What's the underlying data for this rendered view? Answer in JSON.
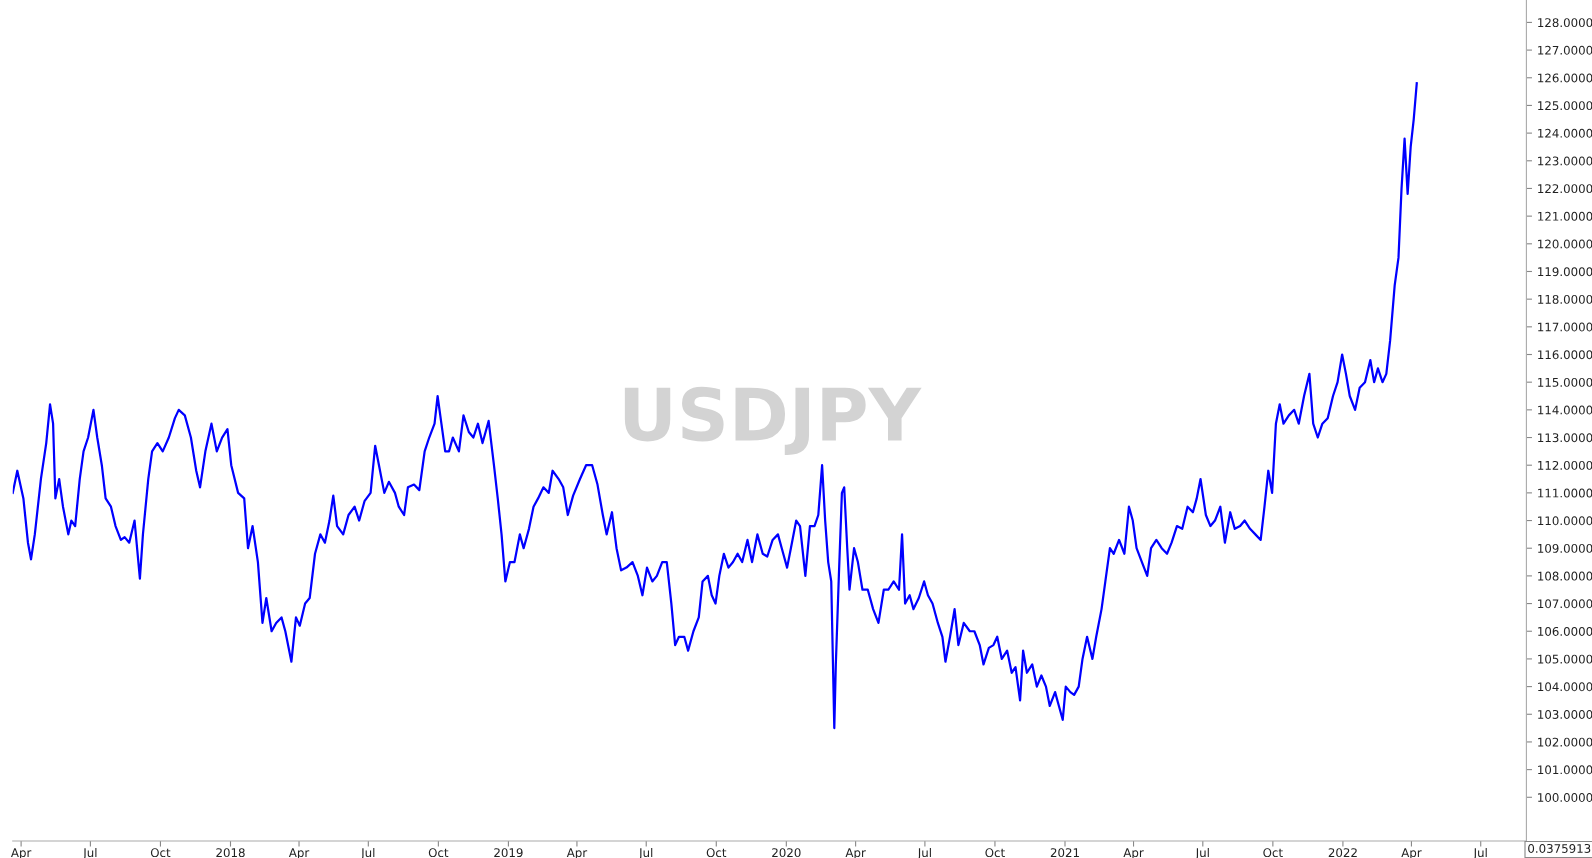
{
  "chart_data": {
    "type": "line",
    "title": "USDJPY",
    "annotations": [
      "0.0375913"
    ],
    "xlim": [
      "2017-03-21",
      "2022-08-30"
    ],
    "xticks": [
      {
        "value": "2017-04-01",
        "label": "Apr"
      },
      {
        "value": "2017-07-01",
        "label": "Jul"
      },
      {
        "value": "2017-10-01",
        "label": "Oct"
      },
      {
        "value": "2018-01-01",
        "label": "2018"
      },
      {
        "value": "2018-04-01",
        "label": "Apr"
      },
      {
        "value": "2018-07-01",
        "label": "Jul"
      },
      {
        "value": "2018-10-01",
        "label": "Oct"
      },
      {
        "value": "2019-01-01",
        "label": "2019"
      },
      {
        "value": "2019-04-01",
        "label": "Apr"
      },
      {
        "value": "2019-07-01",
        "label": "Jul"
      },
      {
        "value": "2019-10-01",
        "label": "Oct"
      },
      {
        "value": "2020-01-01",
        "label": "2020"
      },
      {
        "value": "2020-04-01",
        "label": "Apr"
      },
      {
        "value": "2020-07-01",
        "label": "Jul"
      },
      {
        "value": "2020-10-01",
        "label": "Oct"
      },
      {
        "value": "2021-01-01",
        "label": "2021"
      },
      {
        "value": "2021-04-01",
        "label": "Apr"
      },
      {
        "value": "2021-07-01",
        "label": "Jul"
      },
      {
        "value": "2021-10-01",
        "label": "Oct"
      },
      {
        "value": "2022-01-01",
        "label": "2022"
      },
      {
        "value": "2022-04-01",
        "label": "Apr"
      },
      {
        "value": "2022-07-01",
        "label": "Jul"
      }
    ],
    "ylim": [
      98.42,
      128.81
    ],
    "yticks": [
      {
        "value": 100,
        "label": "100.0000"
      },
      {
        "value": 101,
        "label": "101.0000"
      },
      {
        "value": 102,
        "label": "102.0000"
      },
      {
        "value": 103,
        "label": "103.0000"
      },
      {
        "value": 104,
        "label": "104.0000"
      },
      {
        "value": 105,
        "label": "105.0000"
      },
      {
        "value": 106,
        "label": "106.0000"
      },
      {
        "value": 107,
        "label": "107.0000"
      },
      {
        "value": 108,
        "label": "108.0000"
      },
      {
        "value": 109,
        "label": "109.0000"
      },
      {
        "value": 110,
        "label": "110.0000"
      },
      {
        "value": 111,
        "label": "111.0000"
      },
      {
        "value": 112,
        "label": "112.0000"
      },
      {
        "value": 113,
        "label": "113.0000"
      },
      {
        "value": 114,
        "label": "114.0000"
      },
      {
        "value": 115,
        "label": "115.0000"
      },
      {
        "value": 116,
        "label": "116.0000"
      },
      {
        "value": 117,
        "label": "117.0000"
      },
      {
        "value": 118,
        "label": "118.0000"
      },
      {
        "value": 119,
        "label": "119.0000"
      },
      {
        "value": 120,
        "label": "120.0000"
      },
      {
        "value": 121,
        "label": "121.0000"
      },
      {
        "value": 122,
        "label": "122.0000"
      },
      {
        "value": 123,
        "label": "123.0000"
      },
      {
        "value": 124,
        "label": "124.0000"
      },
      {
        "value": 125,
        "label": "125.0000"
      },
      {
        "value": 126,
        "label": "126.0000"
      },
      {
        "value": 127,
        "label": "127.0000"
      },
      {
        "value": 128,
        "label": "128.0000"
      }
    ],
    "grid": false,
    "legend": false,
    "marker": "none",
    "line_style": "solid",
    "series": [
      {
        "color": "#0000ff",
        "x": [
          "2017-03-21",
          "2017-03-27",
          "2017-04-04",
          "2017-04-10",
          "2017-04-14",
          "2017-04-19",
          "2017-04-27",
          "2017-05-04",
          "2017-05-09",
          "2017-05-13",
          "2017-05-16",
          "2017-05-21",
          "2017-05-26",
          "2017-06-02",
          "2017-06-06",
          "2017-06-11",
          "2017-06-17",
          "2017-06-22",
          "2017-06-28",
          "2017-07-05",
          "2017-07-10",
          "2017-07-16",
          "2017-07-21",
          "2017-07-28",
          "2017-08-03",
          "2017-08-10",
          "2017-08-15",
          "2017-08-21",
          "2017-08-28",
          "2017-09-04",
          "2017-09-08",
          "2017-09-15",
          "2017-09-20",
          "2017-09-27",
          "2017-10-04",
          "2017-10-12",
          "2017-10-20",
          "2017-10-25",
          "2017-11-02",
          "2017-11-10",
          "2017-11-17",
          "2017-11-22",
          "2017-11-29",
          "2017-12-07",
          "2017-12-14",
          "2017-12-21",
          "2017-12-28",
          "2018-01-02",
          "2018-01-11",
          "2018-01-19",
          "2018-01-24",
          "2018-01-30",
          "2018-02-06",
          "2018-02-12",
          "2018-02-17",
          "2018-02-24",
          "2018-03-02",
          "2018-03-09",
          "2018-03-14",
          "2018-03-22",
          "2018-03-28",
          "2018-04-02",
          "2018-04-09",
          "2018-04-15",
          "2018-04-22",
          "2018-04-29",
          "2018-05-05",
          "2018-05-11",
          "2018-05-16",
          "2018-05-21",
          "2018-05-29",
          "2018-06-05",
          "2018-06-13",
          "2018-06-19",
          "2018-06-26",
          "2018-07-04",
          "2018-07-10",
          "2018-07-15",
          "2018-07-22",
          "2018-07-28",
          "2018-08-05",
          "2018-08-10",
          "2018-08-17",
          "2018-08-22",
          "2018-08-30",
          "2018-09-06",
          "2018-09-13",
          "2018-09-19",
          "2018-09-26",
          "2018-09-30",
          "2018-10-05",
          "2018-10-10",
          "2018-10-15",
          "2018-10-20",
          "2018-10-28",
          "2018-11-03",
          "2018-11-10",
          "2018-11-16",
          "2018-11-22",
          "2018-11-28",
          "2018-12-06",
          "2018-12-13",
          "2018-12-18",
          "2018-12-23",
          "2018-12-28",
          "2019-01-03",
          "2019-01-09",
          "2019-01-16",
          "2019-01-21",
          "2019-01-28",
          "2019-02-03",
          "2019-02-09",
          "2019-02-16",
          "2019-02-23",
          "2019-02-28",
          "2019-03-08",
          "2019-03-14",
          "2019-03-20",
          "2019-03-27",
          "2019-04-05",
          "2019-04-13",
          "2019-04-21",
          "2019-04-28",
          "2019-05-05",
          "2019-05-10",
          "2019-05-17",
          "2019-05-23",
          "2019-05-29",
          "2019-06-05",
          "2019-06-13",
          "2019-06-20",
          "2019-06-26",
          "2019-07-02",
          "2019-07-09",
          "2019-07-15",
          "2019-07-22",
          "2019-07-28",
          "2019-08-03",
          "2019-08-08",
          "2019-08-13",
          "2019-08-20",
          "2019-08-25",
          "2019-09-01",
          "2019-09-08",
          "2019-09-13",
          "2019-09-20",
          "2019-09-25",
          "2019-09-30",
          "2019-10-05",
          "2019-10-11",
          "2019-10-17",
          "2019-10-23",
          "2019-10-29",
          "2019-11-04",
          "2019-11-11",
          "2019-11-17",
          "2019-11-24",
          "2019-12-01",
          "2019-12-07",
          "2019-12-14",
          "2019-12-21",
          "2019-12-26",
          "2020-01-02",
          "2020-01-07",
          "2020-01-14",
          "2020-01-19",
          "2020-01-26",
          "2020-02-01",
          "2020-02-07",
          "2020-02-12",
          "2020-02-17",
          "2020-02-21",
          "2020-02-25",
          "2020-02-29",
          "2020-03-04",
          "2020-03-06",
          "2020-03-10",
          "2020-03-14",
          "2020-03-17",
          "2020-03-21",
          "2020-03-24",
          "2020-03-30",
          "2020-04-04",
          "2020-04-10",
          "2020-04-17",
          "2020-04-24",
          "2020-05-01",
          "2020-05-08",
          "2020-05-14",
          "2020-05-21",
          "2020-05-28",
          "2020-06-01",
          "2020-06-05",
          "2020-06-11",
          "2020-06-16",
          "2020-06-23",
          "2020-06-30",
          "2020-07-05",
          "2020-07-11",
          "2020-07-18",
          "2020-07-24",
          "2020-07-28",
          "2020-08-03",
          "2020-08-09",
          "2020-08-14",
          "2020-08-21",
          "2020-08-29",
          "2020-09-04",
          "2020-09-11",
          "2020-09-16",
          "2020-09-23",
          "2020-09-29",
          "2020-10-04",
          "2020-10-10",
          "2020-10-17",
          "2020-10-23",
          "2020-10-28",
          "2020-11-03",
          "2020-11-07",
          "2020-11-12",
          "2020-11-19",
          "2020-11-25",
          "2020-12-01",
          "2020-12-07",
          "2020-12-12",
          "2020-12-19",
          "2020-12-24",
          "2020-12-29",
          "2021-01-02",
          "2021-01-08",
          "2021-01-13",
          "2021-01-19",
          "2021-01-24",
          "2021-01-30",
          "2021-02-06",
          "2021-02-11",
          "2021-02-18",
          "2021-02-23",
          "2021-03-01",
          "2021-03-06",
          "2021-03-13",
          "2021-03-20",
          "2021-03-26",
          "2021-03-31",
          "2021-04-05",
          "2021-04-12",
          "2021-04-19",
          "2021-04-24",
          "2021-05-01",
          "2021-05-08",
          "2021-05-15",
          "2021-05-21",
          "2021-05-28",
          "2021-06-04",
          "2021-06-11",
          "2021-06-18",
          "2021-06-23",
          "2021-06-28",
          "2021-07-05",
          "2021-07-11",
          "2021-07-17",
          "2021-07-24",
          "2021-07-30",
          "2021-08-06",
          "2021-08-12",
          "2021-08-19",
          "2021-08-25",
          "2021-09-01",
          "2021-09-08",
          "2021-09-15",
          "2021-09-20",
          "2021-09-25",
          "2021-09-30",
          "2021-10-05",
          "2021-10-10",
          "2021-10-15",
          "2021-10-22",
          "2021-10-29",
          "2021-11-04",
          "2021-11-11",
          "2021-11-18",
          "2021-11-23",
          "2021-11-29",
          "2021-12-05",
          "2021-12-12",
          "2021-12-19",
          "2021-12-25",
          "2021-12-31",
          "2022-01-05",
          "2022-01-10",
          "2022-01-17",
          "2022-01-23",
          "2022-01-30",
          "2022-02-06",
          "2022-02-11",
          "2022-02-16",
          "2022-02-22",
          "2022-02-27",
          "2022-03-04",
          "2022-03-10",
          "2022-03-15",
          "2022-03-19",
          "2022-03-23",
          "2022-03-27",
          "2022-03-31",
          "2022-04-04",
          "2022-04-08"
        ],
        "values": [
          111.0,
          111.8,
          110.8,
          109.2,
          108.6,
          109.5,
          111.5,
          112.8,
          114.2,
          113.5,
          110.8,
          111.5,
          110.5,
          109.5,
          110.0,
          109.8,
          111.5,
          112.5,
          113.0,
          114.0,
          113.0,
          112.0,
          110.8,
          110.5,
          109.8,
          109.3,
          109.4,
          109.2,
          110.0,
          107.9,
          109.5,
          111.5,
          112.5,
          112.8,
          112.5,
          113.0,
          113.7,
          114.0,
          113.8,
          113.0,
          111.8,
          111.2,
          112.5,
          113.5,
          112.5,
          113.0,
          113.3,
          112.0,
          111.0,
          110.8,
          109.0,
          109.8,
          108.5,
          106.3,
          107.2,
          106.0,
          106.3,
          106.5,
          106.0,
          104.9,
          106.5,
          106.2,
          107.0,
          107.2,
          108.8,
          109.5,
          109.2,
          110.0,
          110.9,
          109.8,
          109.5,
          110.2,
          110.5,
          110.0,
          110.7,
          111.0,
          112.7,
          112.0,
          111.0,
          111.4,
          111.0,
          110.5,
          110.2,
          111.2,
          111.3,
          111.1,
          112.5,
          113.0,
          113.5,
          114.5,
          113.5,
          112.5,
          112.5,
          113.0,
          112.5,
          113.8,
          113.2,
          113.0,
          113.5,
          112.8,
          113.6,
          112.0,
          110.8,
          109.5,
          107.8,
          108.5,
          108.5,
          109.5,
          109.0,
          109.7,
          110.5,
          110.8,
          111.2,
          111.0,
          111.8,
          111.5,
          111.2,
          110.2,
          110.9,
          111.5,
          112.0,
          112.0,
          111.3,
          110.2,
          109.5,
          110.3,
          109.0,
          108.2,
          108.3,
          108.5,
          108.0,
          107.3,
          108.3,
          107.8,
          108.0,
          108.5,
          108.5,
          107.0,
          105.5,
          105.8,
          105.8,
          105.3,
          106.0,
          106.5,
          107.8,
          108.0,
          107.3,
          107.0,
          108.0,
          108.8,
          108.3,
          108.5,
          108.8,
          108.5,
          109.3,
          108.5,
          109.5,
          108.8,
          108.7,
          109.3,
          109.5,
          109.0,
          108.3,
          109.0,
          110.0,
          109.8,
          108.0,
          109.8,
          109.8,
          110.2,
          112.0,
          110.0,
          108.5,
          107.8,
          102.5,
          104.8,
          108.0,
          111.0,
          111.2,
          109.0,
          107.5,
          109.0,
          108.5,
          107.5,
          107.5,
          106.8,
          106.3,
          107.5,
          107.5,
          107.8,
          107.5,
          109.5,
          107.0,
          107.3,
          106.8,
          107.2,
          107.8,
          107.3,
          107.0,
          106.3,
          105.8,
          104.9,
          105.8,
          106.8,
          105.5,
          106.3,
          106.0,
          106.0,
          105.5,
          104.8,
          105.4,
          105.5,
          105.8,
          105.0,
          105.3,
          104.5,
          104.7,
          103.5,
          105.3,
          104.5,
          104.8,
          104.0,
          104.4,
          104.0,
          103.3,
          103.8,
          103.3,
          102.8,
          104.0,
          103.8,
          103.7,
          104.0,
          105.0,
          105.8,
          105.0,
          105.8,
          106.8,
          107.8,
          109.0,
          108.8,
          109.3,
          108.8,
          110.5,
          110.0,
          109.0,
          108.5,
          108.0,
          109.0,
          109.3,
          109.0,
          108.8,
          109.2,
          109.8,
          109.7,
          110.5,
          110.3,
          110.8,
          111.5,
          110.2,
          109.8,
          110.0,
          110.5,
          109.2,
          110.3,
          109.7,
          109.8,
          110.0,
          109.7,
          109.5,
          109.3,
          110.5,
          111.8,
          111.0,
          113.5,
          114.2,
          113.5,
          113.8,
          114.0,
          113.5,
          114.5,
          115.3,
          113.5,
          113.0,
          113.5,
          113.7,
          114.5,
          115.0,
          116.0,
          115.3,
          114.5,
          114.0,
          114.8,
          115.0,
          115.8,
          115.0,
          115.5,
          115.0,
          115.3,
          116.5,
          118.5,
          119.5,
          122.0,
          123.8,
          121.8,
          123.5,
          124.5,
          125.8
        ]
      }
    ]
  }
}
